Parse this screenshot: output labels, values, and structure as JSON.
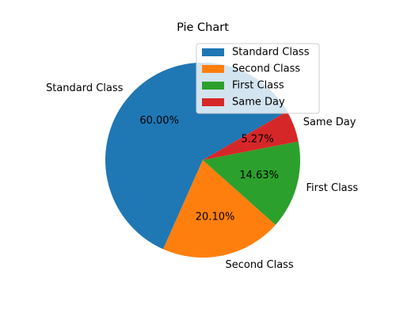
{
  "chart_data": {
    "type": "pie",
    "title": "Pie Chart",
    "labels": [
      "Standard Class",
      "Second Class",
      "First Class",
      "Same Day"
    ],
    "values": [
      60.0,
      20.1,
      14.63,
      5.27
    ],
    "value_labels": [
      "60.00%",
      "20.10%",
      "14.63%",
      "5.27%"
    ],
    "colors": [
      "#1f77b4",
      "#ff7f0e",
      "#2ca02c",
      "#d62728"
    ],
    "start_angle_deg": 30,
    "direction": "counterclockwise",
    "legend": {
      "placement": "upper-right",
      "entries": [
        "Standard Class",
        "Second Class",
        "First Class",
        "Same Day"
      ]
    }
  }
}
